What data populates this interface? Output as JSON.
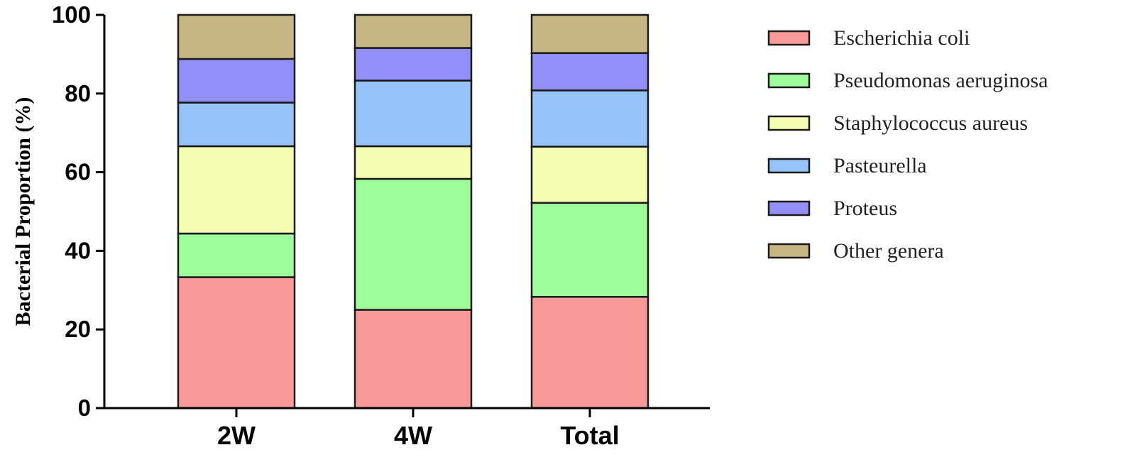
{
  "chart_data": {
    "type": "bar",
    "stacked": true,
    "categories": [
      "2W",
      "4W",
      "Total"
    ],
    "ylabel": "Bacterial Proportion (%)",
    "ylim": [
      0,
      100
    ],
    "yticks": [
      0,
      20,
      40,
      60,
      80,
      100
    ],
    "series": [
      {
        "name": "Escherichia coli",
        "color": "#f99a99",
        "values": [
          33.3,
          25.0,
          28.3
        ]
      },
      {
        "name": "Pseudomonas aeruginosa",
        "color": "#9efd9b",
        "values": [
          11.1,
          33.3,
          23.9
        ]
      },
      {
        "name": "Staphylococcus aureus",
        "color": "#f5fdb2",
        "values": [
          22.2,
          8.3,
          14.3
        ]
      },
      {
        "name": "Pasteurella",
        "color": "#96c3f8",
        "values": [
          11.1,
          16.7,
          14.3
        ]
      },
      {
        "name": "Proteus",
        "color": "#9290f8",
        "values": [
          11.1,
          8.3,
          9.5
        ]
      },
      {
        "name": "Other genera",
        "color": "#c5b683",
        "values": [
          11.2,
          8.4,
          9.7
        ]
      }
    ],
    "legend_position": "right"
  }
}
